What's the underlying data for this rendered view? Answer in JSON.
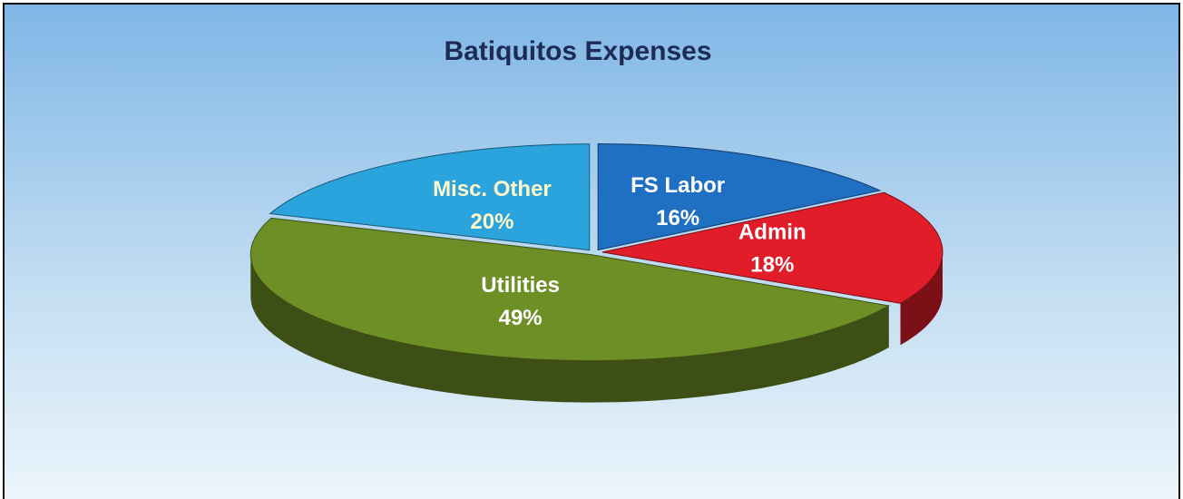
{
  "chart_data": {
    "type": "pie",
    "title": "Batiquitos Expenses",
    "categories": [
      "FS Labor",
      "Admin",
      "Utilities",
      "Misc. Other"
    ],
    "values": [
      16,
      18,
      49,
      20
    ],
    "value_labels": [
      "16%",
      "18%",
      "49%",
      "20%"
    ],
    "colors": [
      "#1f6fc2",
      "#e21d2a",
      "#6e8f25",
      "#2ba3dc"
    ]
  }
}
